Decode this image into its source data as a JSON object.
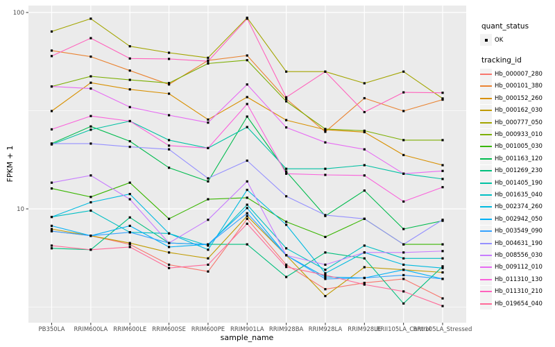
{
  "figure": {
    "y_axis_title": "FPKM + 1",
    "x_axis_title": "sample_name",
    "panel_bg": "#EBEBEB",
    "gridline_color": "#FFFFFF",
    "tick_text_color": "#4D4D4D"
  },
  "legend": {
    "quant_status_title": "quant_status",
    "ok_label": "OK",
    "ok_symbol": "filled-square-point",
    "ok_symbol_color": "#000000",
    "tracking_id_title": "tracking_id",
    "key_bg": "#F2F2F2"
  },
  "chart_data": {
    "type": "line",
    "title": "",
    "xlabel": "sample_name",
    "ylabel": "FPKM + 1",
    "y_scale": "log10",
    "ylim": [
      2.6,
      108
    ],
    "yticks": [
      100,
      10
    ],
    "minor_yticks": [
      31.6,
      3.16
    ],
    "grid": true,
    "legend_position": "right",
    "point_shape": "square",
    "point_color": "#000000",
    "categories": [
      "PB350LA",
      "RRIM600LA",
      "RRIM600LE",
      "RRIM600SE",
      "RRIM600PE",
      "RRIM901LA",
      "RRIM928BA",
      "RRIM928LA",
      "RRIM928LE",
      "RRII105LA_Control",
      "RRII105LA_Stressed"
    ],
    "series": [
      {
        "name": "Hb_000007_280",
        "color": "#F8766D",
        "values": [
          7.7,
          7.3,
          6.6,
          5.2,
          4.8,
          8.9,
          5.2,
          3.9,
          4.2,
          4.4,
          3.5
        ]
      },
      {
        "name": "Hb_000101_380",
        "color": "#EA8331",
        "values": [
          64,
          59.6,
          50.6,
          43,
          57,
          60.4,
          36.3,
          24.7,
          36.6,
          31.5,
          36
        ]
      },
      {
        "name": "Hb_000152_260",
        "color": "#D89000",
        "values": [
          31.5,
          43.9,
          40.6,
          38.6,
          28.5,
          37.1,
          28.3,
          25.3,
          24.6,
          18.8,
          16.7
        ]
      },
      {
        "name": "Hb_000162_030",
        "color": "#C09B00",
        "values": [
          7.9,
          7.3,
          6.7,
          6.0,
          5.6,
          9.2,
          5.8,
          3.6,
          5.05,
          4.9,
          4.75
        ]
      },
      {
        "name": "Hb_000777_050",
        "color": "#A3A500",
        "values": [
          80,
          93,
          67.3,
          62.4,
          58.8,
          94,
          50,
          50,
          43.6,
          50,
          36.5
        ]
      },
      {
        "name": "Hb_000933_010",
        "color": "#7CAE00",
        "values": [
          42,
          47.3,
          45.4,
          43.7,
          55,
          57.2,
          35.3,
          25.5,
          25,
          22.4,
          22.4
        ]
      },
      {
        "name": "Hb_001005_030",
        "color": "#39B600",
        "values": [
          12.7,
          11.5,
          13.6,
          8.9,
          11.2,
          11.4,
          8.6,
          7.2,
          8.9,
          6.6,
          6.6
        ]
      },
      {
        "name": "Hb_001163_120",
        "color": "#00BB4E",
        "values": [
          21.5,
          26.3,
          22.1,
          16.2,
          13.8,
          29.5,
          15.5,
          9.2,
          12.4,
          7.9,
          8.7
        ]
      },
      {
        "name": "Hb_001269_230",
        "color": "#00BF7D",
        "values": [
          6.3,
          6.2,
          9.05,
          6.7,
          6.6,
          6.6,
          4.5,
          6.0,
          5.6,
          3.3,
          5.1
        ]
      },
      {
        "name": "Hb_001405_190",
        "color": "#00C1A3",
        "values": [
          21.3,
          25.3,
          28,
          22.4,
          20.4,
          26.1,
          16,
          16,
          16.7,
          15.1,
          14.2
        ]
      },
      {
        "name": "Hb_001635_040",
        "color": "#00BFC4",
        "values": [
          9.1,
          9.8,
          7.6,
          7.5,
          6.5,
          10.5,
          6.3,
          4.9,
          6.5,
          5.6,
          5.6
        ]
      },
      {
        "name": "Hb_002374_260",
        "color": "#00BAE0",
        "values": [
          9.1,
          10.8,
          11.9,
          7.5,
          6.2,
          12.5,
          8.3,
          4.7,
          6.0,
          5.2,
          5.0
        ]
      },
      {
        "name": "Hb_002942_050",
        "color": "#00B0F6",
        "values": [
          8.2,
          7.3,
          8.2,
          6.4,
          6.6,
          10.1,
          5.8,
          4.5,
          4.45,
          4.9,
          4.4
        ]
      },
      {
        "name": "Hb_003549_090",
        "color": "#35A2FF",
        "values": [
          7.7,
          7.3,
          7.6,
          6.7,
          6.6,
          9.5,
          5.8,
          4.4,
          4.45,
          4.6,
          4.4
        ]
      },
      {
        "name": "Hb_004631_190",
        "color": "#9590FF",
        "values": [
          21.5,
          21.5,
          20.7,
          20.1,
          14.3,
          17.6,
          11.6,
          9.3,
          8.9,
          6.6,
          8.8
        ]
      },
      {
        "name": "Hb_008556_030",
        "color": "#C77CFF",
        "values": [
          13.6,
          14.8,
          11.2,
          6.7,
          8.8,
          13.8,
          5.8,
          5.2,
          6.0,
          6.0,
          6.1
        ]
      },
      {
        "name": "Hb_009112_010",
        "color": "#E76BF3",
        "values": [
          42,
          41,
          33,
          30,
          27.5,
          43,
          26,
          21.8,
          20.1,
          15.1,
          15.6
        ]
      },
      {
        "name": "Hb_011310_130",
        "color": "#FA62DB",
        "values": [
          25.4,
          29.7,
          28,
          21,
          20.4,
          34.2,
          15.1,
          14.9,
          14.8,
          10.9,
          12.9
        ]
      },
      {
        "name": "Hb_011310_210",
        "color": "#FF62BC",
        "values": [
          60,
          74,
          58.3,
          58,
          56.5,
          93,
          37,
          50,
          31.1,
          39.2,
          39
        ]
      },
      {
        "name": "Hb_019654_040",
        "color": "#FF6A98",
        "values": [
          6.5,
          6.2,
          6.4,
          5.0,
          5.2,
          8.4,
          5.06,
          4.6,
          4.12,
          3.8,
          3.2
        ]
      }
    ]
  }
}
